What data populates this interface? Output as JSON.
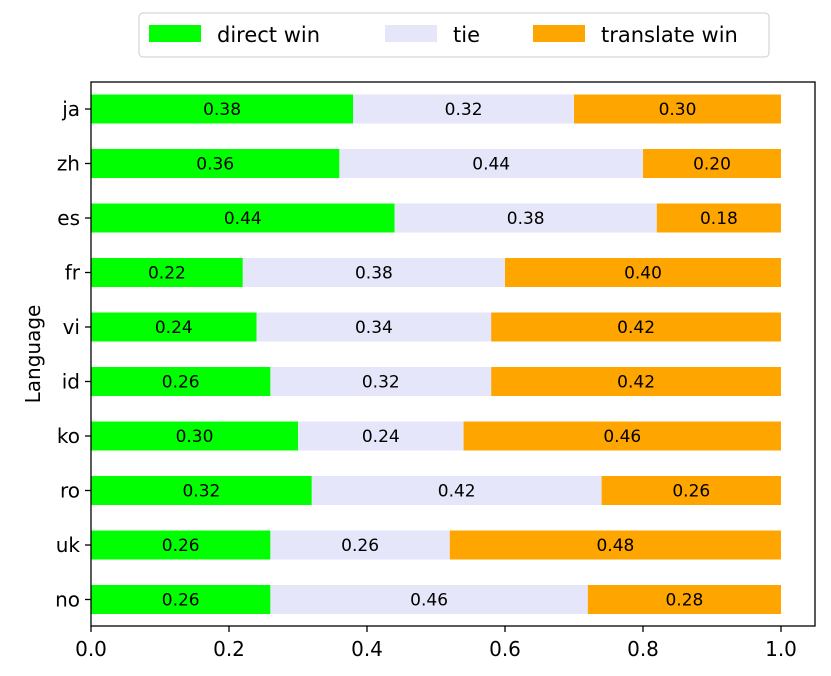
{
  "chart_data": {
    "type": "bar",
    "orientation": "horizontal",
    "stacked": true,
    "title": "",
    "xlabel": "",
    "ylabel": "Language",
    "xlim": [
      0,
      1.0
    ],
    "xticks": [
      "0.0",
      "0.2",
      "0.4",
      "0.6",
      "0.8",
      "1.0"
    ],
    "grid": false,
    "legend_position": "top-center",
    "categories": [
      "ja",
      "zh",
      "es",
      "fr",
      "vi",
      "id",
      "ko",
      "ro",
      "uk",
      "no"
    ],
    "series": [
      {
        "name": "direct win",
        "color": "#00ff00",
        "values": [
          0.38,
          0.36,
          0.44,
          0.22,
          0.24,
          0.26,
          0.3,
          0.32,
          0.26,
          0.26
        ],
        "labels": [
          "0.38",
          "0.36",
          "0.44",
          "0.22",
          "0.24",
          "0.26",
          "0.30",
          "0.32",
          "0.26",
          "0.26"
        ]
      },
      {
        "name": "tie",
        "color": "#e6e6fa",
        "values": [
          0.32,
          0.44,
          0.38,
          0.38,
          0.34,
          0.32,
          0.24,
          0.42,
          0.26,
          0.46
        ],
        "labels": [
          "0.32",
          "0.44",
          "0.38",
          "0.38",
          "0.34",
          "0.32",
          "0.24",
          "0.42",
          "0.26",
          "0.46"
        ]
      },
      {
        "name": "translate win",
        "color": "#ffa500",
        "values": [
          0.3,
          0.2,
          0.18,
          0.4,
          0.42,
          0.42,
          0.46,
          0.26,
          0.48,
          0.28
        ],
        "labels": [
          "0.30",
          "0.20",
          "0.18",
          "0.40",
          "0.42",
          "0.42",
          "0.46",
          "0.26",
          "0.48",
          "0.28"
        ]
      }
    ]
  }
}
